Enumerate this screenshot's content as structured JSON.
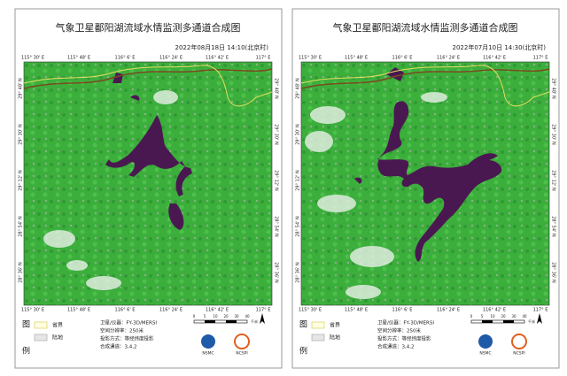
{
  "panels": [
    {
      "title": "气象卫星鄱阳湖流域水情监测多通道合成图",
      "datetime": "2022年08月18日  14:10(北京时)"
    },
    {
      "title": "气象卫星鄱阳湖流域水情监测多通道合成图",
      "datetime": "2022年07月10日  14:30(北京时)"
    }
  ],
  "axes": {
    "lon": [
      "115° 30' E",
      "115° 48' E",
      "116° 6' E",
      "116° 24' E",
      "116° 42' E",
      "117° E"
    ],
    "lat": [
      "29° 48' N",
      "29° 30' N",
      "29° 12' N",
      "28° 54' N",
      "28° 36' N"
    ]
  },
  "legend": {
    "title_top": "图",
    "title_bottom": "例",
    "items": [
      "省界",
      "陆地"
    ]
  },
  "info": [
    "卫星/仪器：FY-3D/MERSI",
    "空间分辨率：250米",
    "投影方式：等经纬度投影",
    "合成通道：3,4,2"
  ],
  "scale": {
    "ticks": [
      "0",
      "5",
      "10",
      "20",
      "30",
      "40"
    ],
    "unit": "千米"
  },
  "logos": [
    "NSMC",
    "NCSPI"
  ]
}
